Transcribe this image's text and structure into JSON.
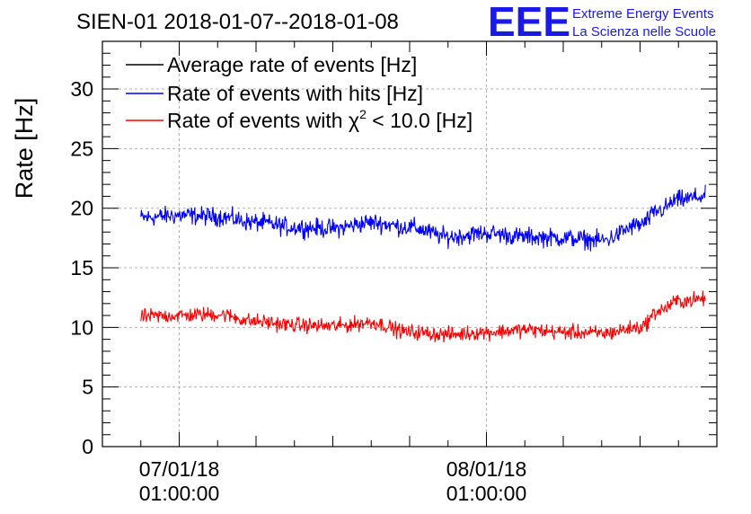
{
  "chart_data": {
    "type": "line",
    "title": "SIEN-01 2018-01-07--2018-01-08",
    "xlabel": "",
    "ylabel": "Rate [Hz]",
    "ylim": [
      0,
      34
    ],
    "yticks": [
      0,
      5,
      10,
      15,
      20,
      25,
      30
    ],
    "xlim": [
      -1.0,
      7.0
    ],
    "xticks": [
      {
        "value": 0,
        "label_date": "07/01/18",
        "label_time": "01:00:00"
      },
      {
        "value": 4,
        "label_date": "08/01/18",
        "label_time": "01:00:00"
      }
    ],
    "grid": true,
    "legend_position": "top-left",
    "series": [
      {
        "name": "Average rate of events [Hz]",
        "color": "#000000",
        "values": []
      },
      {
        "name": "Rate of events with hits [Hz]",
        "color": "#0000ff",
        "x": [
          -0.5,
          0.0,
          0.5,
          1.0,
          1.5,
          2.0,
          2.5,
          3.0,
          3.5,
          4.0,
          4.5,
          5.0,
          5.5,
          6.0,
          6.25,
          6.5,
          6.85
        ],
        "values": [
          19.2,
          19.4,
          19.3,
          18.8,
          18.4,
          18.3,
          18.8,
          18.4,
          17.6,
          17.9,
          17.6,
          17.5,
          17.3,
          18.6,
          19.8,
          20.7,
          21.0
        ],
        "noise": 0.55
      },
      {
        "name": "Rate of events with χ2 < 10.0 [Hz]",
        "color": "#ff0000",
        "x": [
          -0.5,
          0.0,
          0.5,
          1.0,
          1.5,
          2.0,
          2.5,
          3.0,
          3.5,
          4.0,
          4.5,
          5.0,
          5.5,
          6.0,
          6.25,
          6.5,
          6.85
        ],
        "values": [
          10.9,
          11.0,
          11.1,
          10.5,
          10.2,
          10.1,
          10.4,
          9.6,
          9.4,
          9.6,
          9.8,
          9.6,
          9.5,
          10.0,
          11.4,
          12.2,
          12.4
        ],
        "noise": 0.45
      }
    ]
  },
  "logo": {
    "letters": "EEE",
    "line1": "Extreme Energy Events",
    "line2": "La Scienza nelle Scuole",
    "color": "#1a1ae6"
  },
  "legend": {
    "items": [
      {
        "label": "Average rate of events [Hz]"
      },
      {
        "label_prefix": "Rate of events with hits [Hz]"
      },
      {
        "label_prefix": "Rate of events with ",
        "symbol": "χ",
        "superscript": "2",
        "label_suffix": " < 10.0 [Hz]"
      }
    ]
  }
}
